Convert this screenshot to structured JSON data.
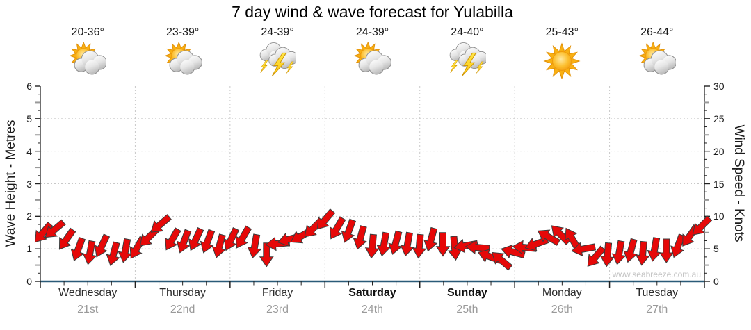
{
  "title": "7 day wind & wave forecast for Yulabilla",
  "watermark": "www.seabreeze.com.au",
  "days": [
    {
      "name": "Wednesday",
      "date": "21st",
      "temp": "20-36°",
      "icon": "partly-cloudy-icon",
      "bold": false
    },
    {
      "name": "Thursday",
      "date": "22nd",
      "temp": "23-39°",
      "icon": "partly-cloudy-icon",
      "bold": false
    },
    {
      "name": "Friday",
      "date": "23rd",
      "temp": "24-39°",
      "icon": "thunderstorm-icon",
      "bold": false
    },
    {
      "name": "Saturday",
      "date": "24th",
      "temp": "24-39°",
      "icon": "partly-cloudy-icon",
      "bold": true
    },
    {
      "name": "Sunday",
      "date": "25th",
      "temp": "24-40°",
      "icon": "thunderstorm-icon",
      "bold": true
    },
    {
      "name": "Monday",
      "date": "26th",
      "temp": "25-43°",
      "icon": "sunny-icon",
      "bold": false
    },
    {
      "name": "Tuesday",
      "date": "27th",
      "temp": "26-44°",
      "icon": "partly-cloudy-icon",
      "bold": false
    }
  ],
  "colors": {
    "arrow_fill": "#e60808",
    "arrow_outline": "#3c3c3c",
    "bottom_axis_line": "#2a5a78",
    "grid_line": "#c8c8c8",
    "date_text": "#9a9a9a",
    "watermark_text": "#c2c2c2"
  },
  "chart_data": {
    "type": "wind-arrow-series",
    "title": "7 day wind & wave forecast for Yulabilla",
    "left_axis": {
      "label": "Wave Height - Metres",
      "min": 0,
      "max": 6,
      "ticks": [
        0,
        1,
        2,
        3,
        4,
        5,
        6
      ]
    },
    "right_axis": {
      "label": "Wind Speed - Knots",
      "min": 0,
      "max": 30,
      "ticks": [
        0,
        5,
        10,
        15,
        20,
        25,
        30
      ]
    },
    "x_categories": [
      "Wednesday 21st",
      "Thursday 22nd",
      "Friday 23rd",
      "Saturday 24th",
      "Sunday 25th",
      "Monday 26th",
      "Tuesday 27th"
    ],
    "grid": true,
    "points_per_day": 8,
    "wind_speed_knots": [
      7.5,
      8.0,
      6.5,
      5.0,
      4.5,
      5.5,
      4.3,
      4.8,
      5.2,
      6.8,
      8.8,
      6.5,
      6.2,
      6.5,
      6.2,
      5.5,
      6.5,
      6.8,
      5.5,
      4.2,
      5.8,
      6.5,
      7.0,
      8.2,
      9.5,
      8.2,
      7.8,
      6.8,
      5.5,
      5.8,
      6.0,
      5.8,
      5.5,
      6.5,
      5.8,
      5.2,
      5.5,
      5.2,
      3.8,
      3.2,
      4.5,
      5.2,
      5.8,
      6.8,
      7.2,
      6.5,
      5.0,
      3.8,
      4.2,
      4.5,
      4.8,
      4.4,
      5.0,
      4.8,
      5.5,
      7.0,
      8.5
    ],
    "arrow_direction_deg": [
      130,
      140,
      125,
      110,
      100,
      115,
      105,
      100,
      120,
      135,
      140,
      120,
      110,
      115,
      110,
      105,
      115,
      120,
      100,
      90,
      175,
      165,
      150,
      135,
      130,
      120,
      110,
      105,
      95,
      100,
      105,
      100,
      95,
      105,
      90,
      85,
      170,
      185,
      200,
      220,
      195,
      185,
      160,
      210,
      225,
      240,
      170,
      130,
      95,
      100,
      105,
      95,
      100,
      90,
      110,
      125,
      135
    ]
  }
}
